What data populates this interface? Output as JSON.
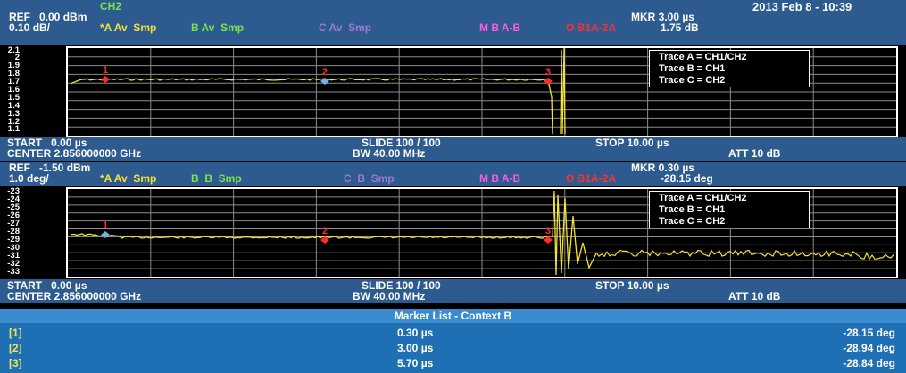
{
  "header": {
    "channel": "CH2",
    "datetime": "2013 Feb 8 - 10:39"
  },
  "top_pane": {
    "ref": "REF   0.00 dBm",
    "scale": "0.10 dB/",
    "trace_a_label": "*A Av  Smp",
    "trace_b_label": "B Av  Smp",
    "trace_c_label": "C Av  Smp",
    "math_label": "M B A-B",
    "math2_label": "O B1A-2A",
    "marker": "MKR 3.00 µs",
    "marker_value": "1.75 dB",
    "y_ticks": [
      "2.1",
      "2",
      "1.9",
      "1.8",
      "1.7",
      "1.6",
      "1.5",
      "1.4",
      "1.3",
      "1.2",
      "1.1"
    ],
    "legend": [
      "Trace A = CH1/CH2",
      "Trace B = CH1",
      "Trace C = CH2"
    ],
    "markers": [
      "1",
      "2",
      "3"
    ],
    "footer": {
      "start": "START   0.00 µs",
      "center": "CENTER 2.856000000 GHz",
      "slide": "SLIDE 100 / 100",
      "bw": "BW 40.00 MHz",
      "stop": "STOP 10.00 µs",
      "att": "ATT 10 dB"
    }
  },
  "bottom_pane": {
    "ref": "REF   -1.50 dBm",
    "scale": "1.0 deg/",
    "trace_a_label": "*A Av  Smp",
    "trace_b_label": "B  B  Smp",
    "trace_c_label": "C  B  Smp",
    "math_label": "M B A-B",
    "math2_label": "O B1A-2A",
    "marker": "MKR 0.30 µs",
    "marker_value": "-28.15 deg",
    "y_ticks": [
      "-23",
      "-24",
      "-25",
      "-26",
      "-27",
      "-28",
      "-29",
      "-30",
      "-31",
      "-32",
      "-33"
    ],
    "legend": [
      "Trace A = CH1/CH2",
      "Trace B = CH1",
      "Trace C = CH2"
    ],
    "markers": [
      "1",
      "2",
      "3"
    ],
    "footer": {
      "start": "START   0.00 µs",
      "center": "CENTER 2.856000000 GHz",
      "slide": "SLIDE 100 / 100",
      "bw": "BW 40.00 MHz",
      "stop": "STOP 10.00 µs",
      "att": "ATT 10 dB"
    }
  },
  "marker_list": {
    "title": "Marker List - Context B",
    "rows": [
      {
        "index": "[1]",
        "position": "0.30 µs",
        "value": "-28.15 deg"
      },
      {
        "index": "[2]",
        "position": "3.00 µs",
        "value": "-28.94 deg"
      },
      {
        "index": "[3]",
        "position": "5.70 µs",
        "value": "-28.84 deg"
      }
    ]
  },
  "colors": {
    "header_bg": "#2d5b8f",
    "trace_yellow": "#f2e23a",
    "trace_green": "#7ee24a",
    "trace_purple": "#b07ad8",
    "math_magenta": "#ff5ae0",
    "math_red": "#ff3030",
    "marker_red": "#ff2a2a",
    "marker_blue": "#6fb4e8"
  }
}
